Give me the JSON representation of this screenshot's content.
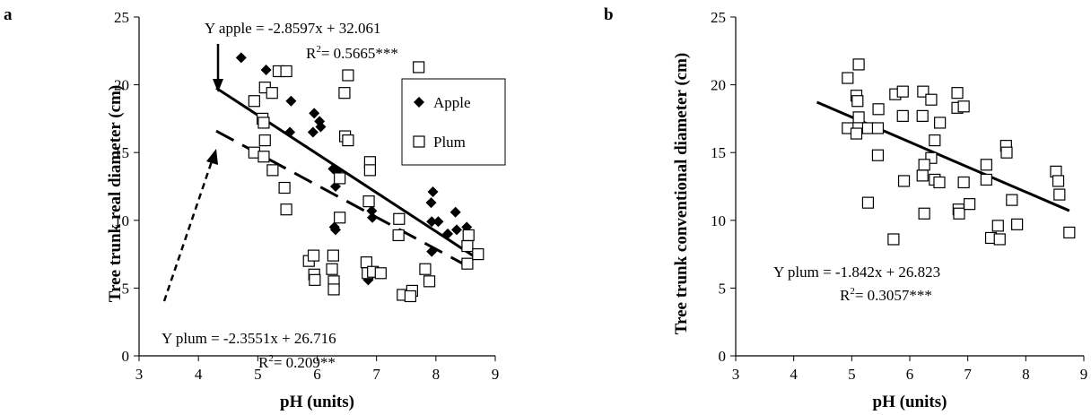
{
  "chart_data": [
    {
      "panel": "a",
      "type": "scatter",
      "xlabel": "pH (units)",
      "ylabel": "Tree trunk real diameter (cm)",
      "xlim": [
        3,
        9
      ],
      "ylim": [
        0,
        25
      ],
      "xticks": [
        "3",
        "4",
        "5",
        "6",
        "7",
        "8",
        "9"
      ],
      "yticks": [
        "0",
        "5",
        "10",
        "15",
        "20",
        "25"
      ],
      "legend_position": "top-right",
      "series": [
        {
          "name": "Apple",
          "marker": "diamond-filled",
          "color": "#000000",
          "points": [
            [
              4.72,
              22.0
            ],
            [
              5.14,
              21.1
            ],
            [
              5.56,
              18.8
            ],
            [
              5.95,
              17.9
            ],
            [
              6.04,
              17.3
            ],
            [
              6.06,
              16.9
            ],
            [
              5.93,
              16.5
            ],
            [
              5.54,
              16.5
            ],
            [
              6.27,
              13.8
            ],
            [
              6.33,
              13.6
            ],
            [
              6.31,
              12.5
            ],
            [
              6.29,
              9.5
            ],
            [
              6.31,
              9.3
            ],
            [
              6.92,
              10.7
            ],
            [
              6.93,
              10.2
            ],
            [
              6.86,
              5.6
            ],
            [
              7.95,
              12.1
            ],
            [
              7.92,
              11.3
            ],
            [
              7.93,
              9.9
            ],
            [
              8.04,
              9.9
            ],
            [
              8.2,
              9.0
            ],
            [
              8.33,
              10.6
            ],
            [
              8.35,
              9.3
            ],
            [
              8.52,
              9.5
            ],
            [
              7.93,
              7.7
            ],
            [
              8.56,
              9.0
            ]
          ]
        },
        {
          "name": "Plum",
          "marker": "square-open",
          "color": "#000000",
          "points": [
            [
              5.35,
              21.0
            ],
            [
              5.48,
              21.0
            ],
            [
              7.71,
              21.3
            ],
            [
              5.12,
              19.8
            ],
            [
              5.24,
              19.4
            ],
            [
              4.94,
              18.8
            ],
            [
              6.52,
              20.7
            ],
            [
              6.46,
              19.4
            ],
            [
              5.08,
              17.5
            ],
            [
              5.1,
              17.2
            ],
            [
              5.12,
              15.9
            ],
            [
              6.47,
              16.2
            ],
            [
              6.52,
              15.9
            ],
            [
              4.94,
              15.0
            ],
            [
              5.1,
              14.7
            ],
            [
              5.25,
              13.7
            ],
            [
              5.45,
              12.4
            ],
            [
              5.48,
              10.8
            ],
            [
              6.38,
              13.1
            ],
            [
              6.38,
              10.2
            ],
            [
              6.89,
              14.3
            ],
            [
              6.89,
              13.7
            ],
            [
              6.87,
              11.4
            ],
            [
              7.38,
              10.1
            ],
            [
              7.37,
              8.9
            ],
            [
              8.55,
              8.9
            ],
            [
              8.53,
              8.1
            ],
            [
              8.53,
              6.8
            ],
            [
              8.71,
              7.5
            ],
            [
              5.86,
              7.0
            ],
            [
              5.94,
              7.4
            ],
            [
              5.95,
              6.0
            ],
            [
              5.96,
              5.6
            ],
            [
              6.25,
              6.4
            ],
            [
              6.27,
              7.4
            ],
            [
              6.28,
              5.5
            ],
            [
              6.28,
              4.9
            ],
            [
              6.83,
              6.9
            ],
            [
              6.85,
              6.1
            ],
            [
              6.94,
              6.2
            ],
            [
              7.07,
              6.1
            ],
            [
              7.44,
              4.5
            ],
            [
              7.6,
              4.8
            ],
            [
              7.57,
              4.4
            ],
            [
              7.82,
              6.4
            ],
            [
              7.89,
              5.5
            ]
          ]
        }
      ],
      "trendlines": [
        {
          "series": "Apple",
          "style": "solid",
          "x": [
            4.3,
            8.7
          ],
          "y": [
            19.76,
            7.18
          ]
        },
        {
          "series": "Plum",
          "style": "dashed",
          "x": [
            4.3,
            8.6
          ],
          "y": [
            16.59,
            6.46
          ]
        }
      ],
      "annotations": {
        "apple_eq": "Y apple = -2.8597x + 32.061",
        "apple_r2_prefix": "R",
        "apple_r2_value": "= 0.5665***",
        "plum_eq": "Y plum = -2.3551x + 26.716",
        "plum_r2_prefix": "R",
        "plum_r2_value": "= 0.209**",
        "r2_sup": "2"
      }
    },
    {
      "panel": "b",
      "type": "scatter",
      "xlabel": "pH (units)",
      "ylabel": "Tree trunk conventional diameter  (cm)",
      "xlim": [
        3,
        9
      ],
      "ylim": [
        0,
        25
      ],
      "xticks": [
        "3",
        "4",
        "5",
        "6",
        "7",
        "8",
        "9"
      ],
      "yticks": [
        "0",
        "5",
        "10",
        "15",
        "20",
        "25"
      ],
      "series": [
        {
          "name": "Plum",
          "marker": "square-open",
          "color": "#000000",
          "points": [
            [
              4.93,
              20.5
            ],
            [
              5.12,
              21.5
            ],
            [
              5.08,
              19.2
            ],
            [
              5.1,
              18.8
            ],
            [
              5.12,
              17.6
            ],
            [
              4.93,
              16.8
            ],
            [
              5.08,
              16.4
            ],
            [
              5.28,
              16.8
            ],
            [
              5.45,
              16.8
            ],
            [
              5.46,
              18.2
            ],
            [
              5.45,
              14.8
            ],
            [
              5.28,
              11.3
            ],
            [
              5.75,
              19.3
            ],
            [
              5.88,
              19.5
            ],
            [
              5.88,
              17.7
            ],
            [
              5.9,
              12.9
            ],
            [
              5.72,
              8.6
            ],
            [
              6.23,
              19.5
            ],
            [
              6.37,
              18.9
            ],
            [
              6.22,
              17.7
            ],
            [
              6.52,
              17.2
            ],
            [
              6.43,
              15.9
            ],
            [
              6.37,
              14.6
            ],
            [
              6.25,
              14.1
            ],
            [
              6.22,
              13.3
            ],
            [
              6.43,
              13.0
            ],
            [
              6.51,
              12.8
            ],
            [
              6.25,
              10.5
            ],
            [
              6.82,
              19.4
            ],
            [
              6.82,
              18.3
            ],
            [
              6.93,
              18.4
            ],
            [
              6.93,
              12.8
            ],
            [
              6.84,
              10.8
            ],
            [
              6.85,
              10.5
            ],
            [
              7.03,
              11.2
            ],
            [
              7.32,
              14.1
            ],
            [
              7.32,
              13.0
            ],
            [
              7.4,
              8.7
            ],
            [
              7.52,
              9.6
            ],
            [
              7.55,
              8.6
            ],
            [
              7.66,
              15.5
            ],
            [
              7.67,
              15.0
            ],
            [
              7.76,
              11.5
            ],
            [
              7.85,
              9.7
            ],
            [
              8.52,
              13.6
            ],
            [
              8.56,
              12.9
            ],
            [
              8.58,
              11.9
            ],
            [
              8.75,
              9.1
            ]
          ]
        }
      ],
      "trendlines": [
        {
          "series": "Plum",
          "style": "solid",
          "x": [
            4.4,
            8.75
          ],
          "y": [
            18.72,
            10.71
          ]
        }
      ],
      "annotations": {
        "plum_eq": "Y plum = -1.842x + 26.823",
        "plum_r2_prefix": "R",
        "plum_r2_value": "= 0.3057***",
        "r2_sup": "2"
      }
    }
  ]
}
